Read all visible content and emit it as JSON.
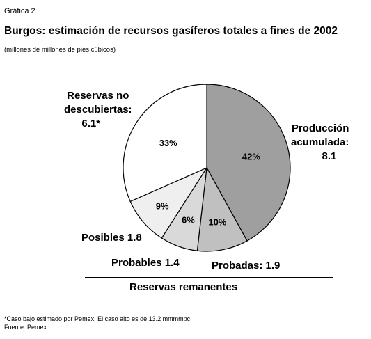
{
  "header": {
    "figure_number": "Gráfica 2",
    "title": "Burgos: estimación de recursos gasíferos totales a fines de 2002",
    "subtitle": "(millones de millones de pies cúbicos)"
  },
  "chart_data": {
    "type": "pie",
    "unit": "millones de millones de pies cúbicos",
    "slices": [
      {
        "name": "Producción acumulada",
        "value": 8.1,
        "percent_label": "42%",
        "color": "#9f9f9f"
      },
      {
        "name": "Probadas",
        "value": 1.9,
        "percent_label": "10%",
        "color": "#c0c0c0"
      },
      {
        "name": "Probables",
        "value": 1.4,
        "percent_label": "6%",
        "color": "#d9d9d9"
      },
      {
        "name": "Posibles",
        "value": 1.8,
        "percent_label": "9%",
        "color": "#efefef"
      },
      {
        "name": "Reservas no descubiertas",
        "value": 6.1,
        "percent_label": "33%",
        "color": "#ffffff"
      }
    ],
    "labels": {
      "produccion": [
        "Producción",
        "acumulada:",
        "8.1"
      ],
      "probadas": "Probadas: 1.9",
      "probables": "Probables 1.4",
      "posibles": "Posibles 1.8",
      "no_descubiertas": [
        "Reservas no",
        "descubiertas:",
        "6.1*"
      ]
    },
    "group_label": "Reservas remanentes"
  },
  "footer": {
    "note": "*Caso bajo estimado por Pemex. El caso alto es de 13.2 mmmmpc",
    "source": "Fuente: Pemex"
  }
}
